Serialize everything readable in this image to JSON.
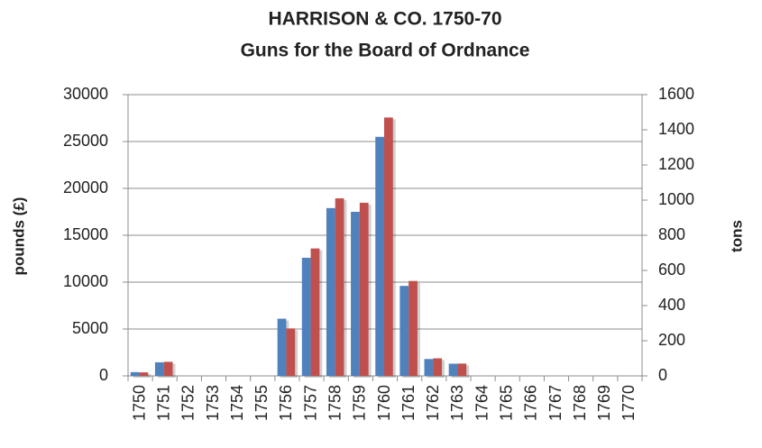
{
  "chart_data": {
    "type": "bar",
    "title": "HARRISON & CO. 1750-70",
    "subtitle": "Guns for the Board of Ordnance",
    "y_label": "pounds (£)",
    "y2_label": "tons",
    "categories": [
      "1750",
      "1751",
      "1752",
      "1753",
      "1754",
      "1755",
      "1756",
      "1757",
      "1758",
      "1759",
      "1760",
      "1761",
      "1762",
      "1763",
      "1764",
      "1765",
      "1766",
      "1767",
      "1768",
      "1769",
      "1770"
    ],
    "series": [
      {
        "color": "#4f81bd",
        "axis": "y",
        "values": [
          400,
          1450,
          0,
          0,
          0,
          0,
          6100,
          12600,
          17900,
          17500,
          25500,
          9600,
          1800,
          1300,
          0,
          0,
          0,
          0,
          0,
          0,
          0
        ]
      },
      {
        "color": "#c0504d",
        "axis": "y2",
        "values": [
          20,
          80,
          0,
          0,
          0,
          0,
          270,
          725,
          1010,
          985,
          1470,
          540,
          100,
          70,
          0,
          0,
          0,
          0,
          0,
          0,
          0
        ]
      }
    ],
    "ylim": [
      0,
      30000
    ],
    "yticks": [
      0,
      5000,
      10000,
      15000,
      20000,
      25000,
      30000
    ],
    "y2lim": [
      0,
      1600
    ],
    "y2ticks": [
      0,
      200,
      400,
      600,
      800,
      1000,
      1200,
      1400,
      1600
    ],
    "grid": true
  }
}
